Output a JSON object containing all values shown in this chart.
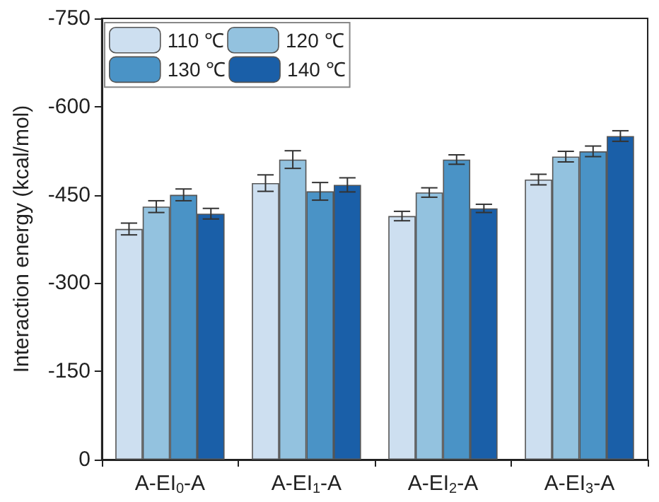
{
  "chart_data": {
    "type": "bar",
    "ylabel": "Interaction energy (kcal/mol)",
    "categories": [
      "A-EI$_{0}$-A",
      "A-EI$_{1}$-A",
      "A-EI$_{2}$-A",
      "A-EI$_{3}$-A"
    ],
    "series": [
      {
        "name": "110 ℃",
        "color": "#cddff0",
        "values": [
          -392,
          -470,
          -414,
          -476
        ],
        "errors": [
          10,
          14,
          8,
          9
        ]
      },
      {
        "name": "120 ℃",
        "color": "#93c2df",
        "values": [
          -430,
          -510,
          -454,
          -515
        ],
        "errors": [
          10,
          15,
          8,
          9
        ]
      },
      {
        "name": "130 ℃",
        "color": "#4a93c6",
        "values": [
          -450,
          -456,
          -510,
          -524
        ],
        "errors": [
          10,
          15,
          8,
          9
        ]
      },
      {
        "name": "140 ℃",
        "color": "#1a5fa8",
        "values": [
          -418,
          -467,
          -427,
          -550
        ],
        "errors": [
          9,
          12,
          7,
          9
        ]
      }
    ],
    "ylim": [
      0,
      -750
    ],
    "yticks": [
      0,
      -150,
      -300,
      -450,
      -600,
      -750
    ],
    "grid": false,
    "legend": "top left"
  }
}
